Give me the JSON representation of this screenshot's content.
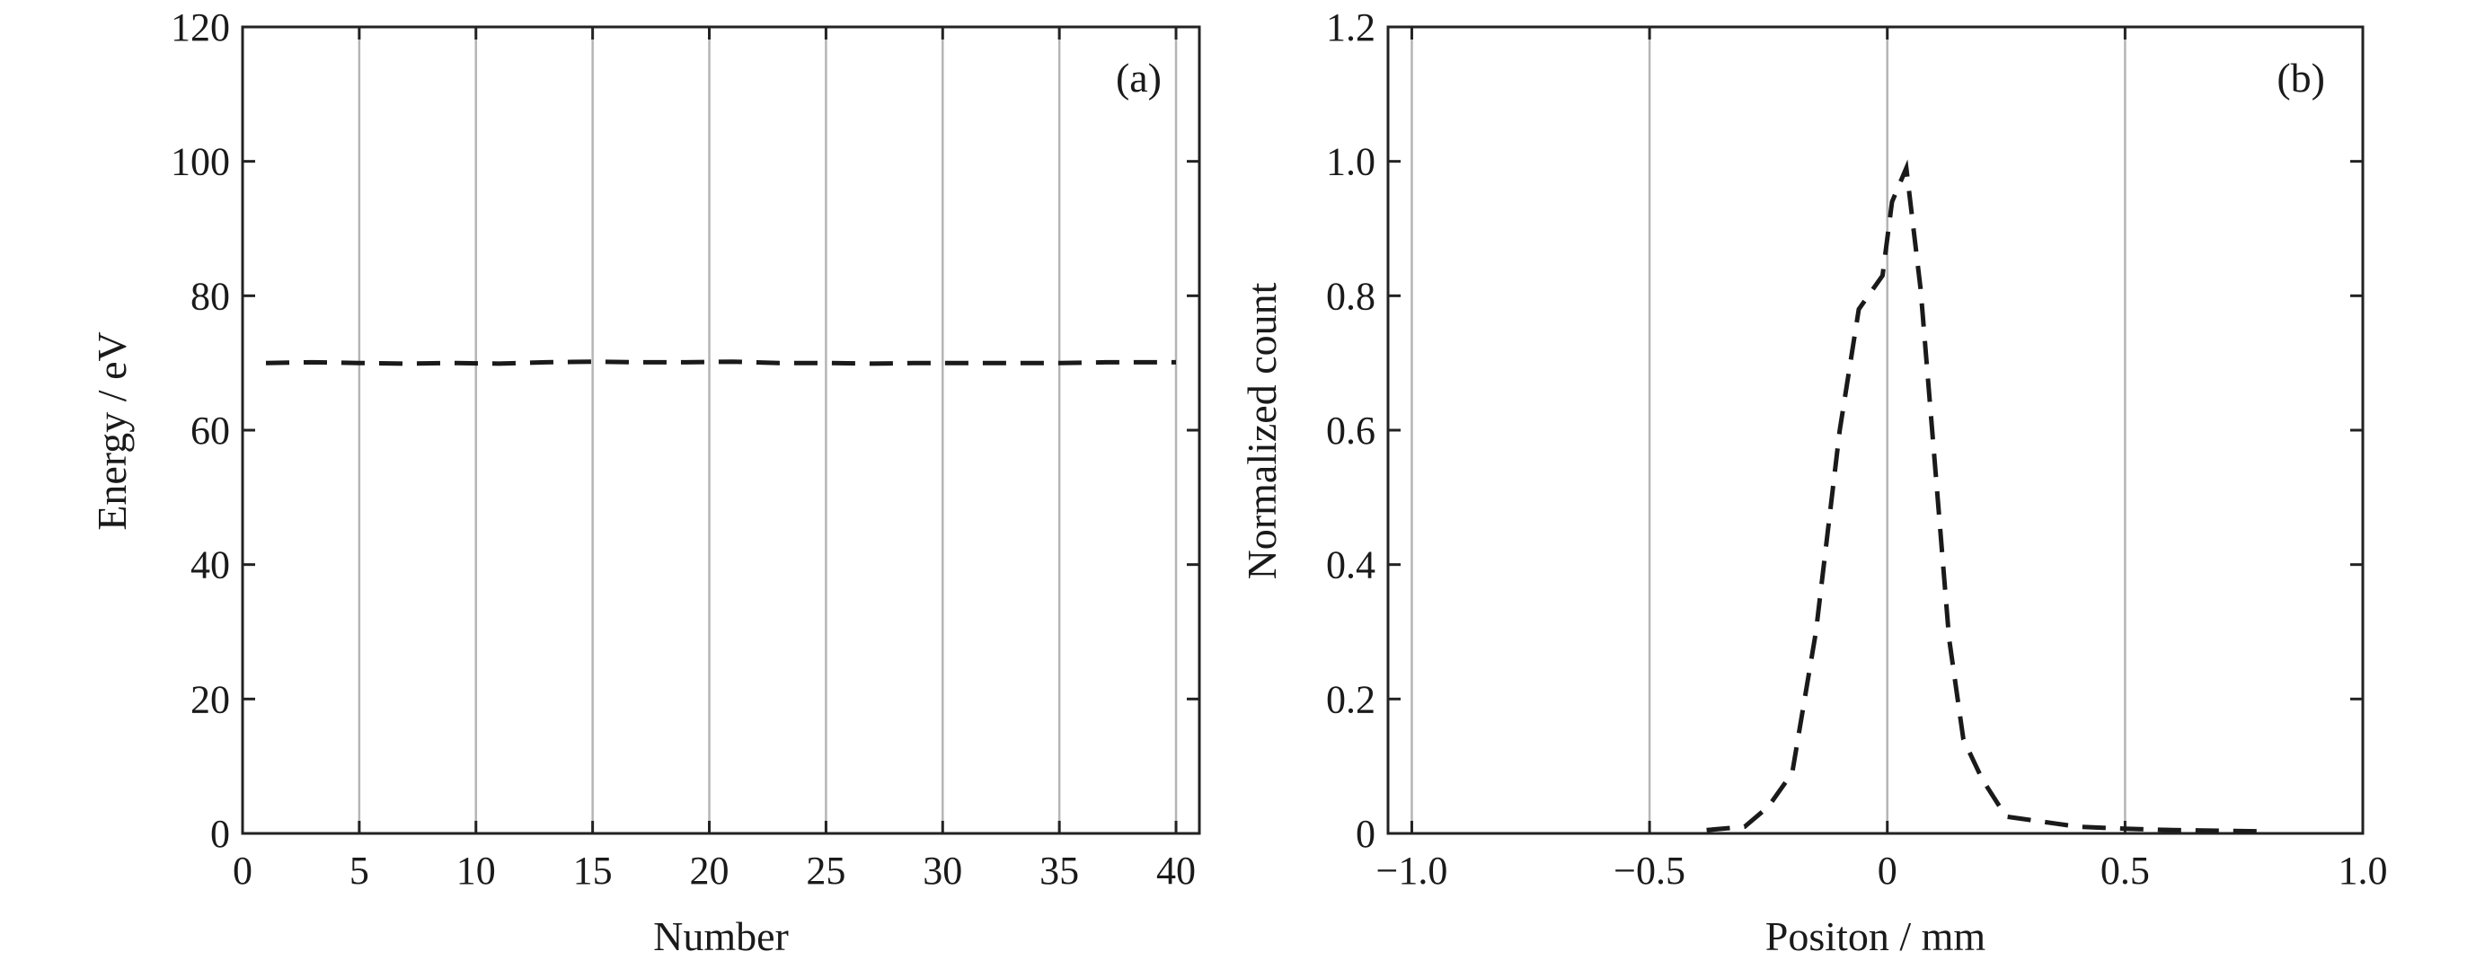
{
  "chart_data": [
    {
      "type": "line",
      "panel_label": "(a)",
      "xlabel": "Number",
      "ylabel": "Energy / eV",
      "xlim": [
        0,
        41
      ],
      "ylim": [
        0,
        120
      ],
      "x_ticks": [
        0,
        5,
        10,
        15,
        20,
        25,
        30,
        35,
        40
      ],
      "x_tick_labels": [
        "0",
        "5",
        "10",
        "15",
        "20",
        "25",
        "30",
        "35",
        "40"
      ],
      "y_ticks": [
        0,
        20,
        40,
        60,
        80,
        100,
        120
      ],
      "y_tick_labels": [
        "0",
        "20",
        "40",
        "60",
        "80",
        "100",
        "120"
      ],
      "grid": "vertical",
      "series": [
        {
          "style": "dashed",
          "x": [
            1,
            3,
            5,
            7,
            9,
            11,
            13,
            15,
            17,
            19,
            21,
            23,
            25,
            27,
            29,
            31,
            33,
            35,
            37,
            39,
            40
          ],
          "y": [
            70.0,
            70.1,
            70.0,
            69.9,
            70.0,
            69.9,
            70.1,
            70.2,
            70.1,
            70.1,
            70.2,
            70.0,
            70.0,
            69.9,
            70.0,
            70.0,
            70.0,
            70.0,
            70.1,
            70.1,
            70.1
          ]
        }
      ]
    },
    {
      "type": "line",
      "panel_label": "(b)",
      "xlabel": "Positon / mm",
      "ylabel": "Normalized count",
      "xlim": [
        -1.05,
        1.0
      ],
      "ylim": [
        0,
        1.2
      ],
      "x_ticks": [
        -1.0,
        -0.5,
        0,
        0.5,
        1.0
      ],
      "x_tick_labels": [
        "−1.0",
        "−0.5",
        "0",
        "0.5",
        "1.0"
      ],
      "y_ticks": [
        0,
        0.2,
        0.4,
        0.6,
        0.8,
        1.0,
        1.2
      ],
      "y_tick_labels": [
        "0",
        "0.2",
        "0.4",
        "0.6",
        "0.8",
        "1.0",
        "1.2"
      ],
      "grid": "vertical",
      "series": [
        {
          "style": "dashed",
          "x": [
            -0.38,
            -0.3,
            -0.25,
            -0.2,
            -0.15,
            -0.1,
            -0.06,
            -0.01,
            0.01,
            0.04,
            0.07,
            0.1,
            0.13,
            0.16,
            0.2,
            0.25,
            0.3,
            0.4,
            0.5,
            0.6,
            0.8
          ],
          "y": [
            0.005,
            0.01,
            0.04,
            0.09,
            0.3,
            0.6,
            0.78,
            0.83,
            0.94,
            0.99,
            0.81,
            0.55,
            0.29,
            0.14,
            0.08,
            0.025,
            0.02,
            0.01,
            0.007,
            0.005,
            0.003
          ]
        }
      ]
    }
  ]
}
